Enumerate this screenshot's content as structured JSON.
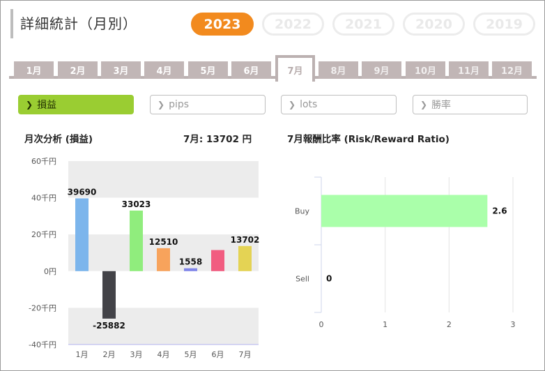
{
  "header": {
    "title": "詳細統計（月別）"
  },
  "years": [
    {
      "label": "2023",
      "active": true
    },
    {
      "label": "2022",
      "active": false
    },
    {
      "label": "2021",
      "active": false
    },
    {
      "label": "2020",
      "active": false
    },
    {
      "label": "2019",
      "active": false
    }
  ],
  "months": [
    {
      "label": "1月",
      "state": "enabled"
    },
    {
      "label": "2月",
      "state": "enabled"
    },
    {
      "label": "3月",
      "state": "enabled"
    },
    {
      "label": "4月",
      "state": "enabled"
    },
    {
      "label": "5月",
      "state": "enabled"
    },
    {
      "label": "6月",
      "state": "enabled"
    },
    {
      "label": "7月",
      "state": "active"
    },
    {
      "label": "8月",
      "state": "disabled"
    },
    {
      "label": "9月",
      "state": "disabled"
    },
    {
      "label": "10月",
      "state": "disabled"
    },
    {
      "label": "11月",
      "state": "disabled"
    },
    {
      "label": "12月",
      "state": "disabled"
    }
  ],
  "metrics": [
    {
      "label": "損益",
      "active": true
    },
    {
      "label": "pips",
      "active": false
    },
    {
      "label": "lots",
      "active": false
    },
    {
      "label": "勝率",
      "active": false
    }
  ],
  "monthly": {
    "title": "月次分析 (損益)",
    "total_label": "7月:  13702 円"
  },
  "risk_reward": {
    "title": "7月報酬比率 (Risk/Reward Ratio)"
  },
  "chart_data": [
    {
      "type": "bar",
      "title": "月次分析 (損益)",
      "categories": [
        "1月",
        "2月",
        "3月",
        "4月",
        "5月",
        "6月",
        "7月"
      ],
      "values": [
        39690,
        -25882,
        33023,
        12510,
        1558,
        null,
        13702
      ],
      "value_labels": [
        "39690",
        "-25882",
        "33023",
        "12510",
        "1558",
        "",
        "13702"
      ],
      "unshown_estimates": {
        "6月": 11500
      },
      "colors": [
        "#7cb5ec",
        "#434348",
        "#90ed7d",
        "#f7a35c",
        "#8085e9",
        "#f15c80",
        "#e4d354"
      ],
      "yticks": [
        "60千円",
        "40千円",
        "20千円",
        "0円",
        "-20千円",
        "-40千円"
      ],
      "ylim": [
        -40000,
        60000
      ],
      "grid": true
    },
    {
      "type": "bar",
      "orientation": "horizontal",
      "title": "7月報酬比率 (Risk/Reward Ratio)",
      "categories": [
        "Buy",
        "Sell"
      ],
      "values": [
        2.6,
        0
      ],
      "value_labels": [
        "2.6",
        "0"
      ],
      "colors": [
        "#aaffaa",
        "#aaffaa"
      ],
      "xticks": [
        "0",
        "1",
        "2",
        "3"
      ],
      "xlim": [
        0,
        3
      ],
      "grid": true
    }
  ]
}
